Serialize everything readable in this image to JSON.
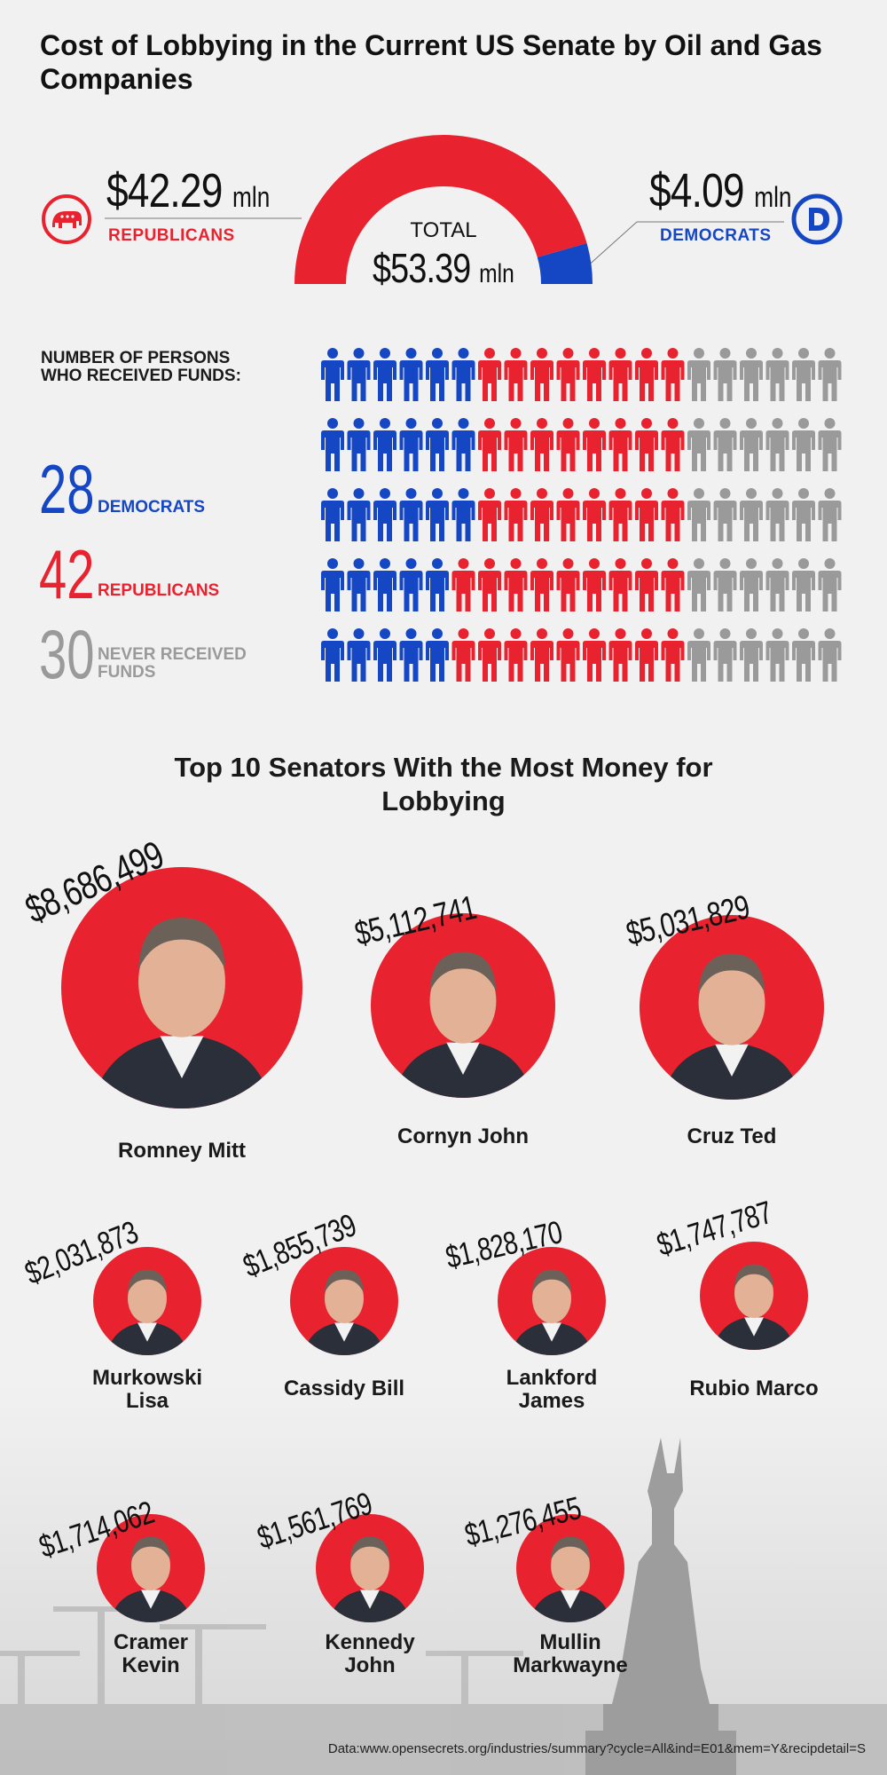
{
  "title": "Cost of Lobbying in the Current US Senate by Oil and Gas Companies",
  "total": {
    "label": "TOTAL",
    "amount": "$53.39",
    "unit": "mln"
  },
  "republicans": {
    "amount": "$42.29",
    "unit": "mln",
    "label": "REPUBLICANS",
    "value": 42.29,
    "color": "#e8232f"
  },
  "democrats": {
    "amount": "$4.09",
    "unit": "mln",
    "label": "DEMOCRATS",
    "value": 4.09,
    "color": "#1546c3"
  },
  "persons": {
    "heading": "NUMBER OF PERSONS WHO RECEIVED FUNDS:",
    "democrats": {
      "count": "28",
      "label": "DEMOCRATS"
    },
    "republicans": {
      "count": "42",
      "label": "REPUBLICANS"
    },
    "never": {
      "count": "30",
      "label": "NEVER RECEIVED FUNDS"
    }
  },
  "icons": {
    "republican_logo": "elephant-icon",
    "democrat_logo": "democrat-d-icon",
    "person": "person-icon",
    "gray": "#9a9a9a"
  },
  "top_title": "Top 10 Senators With the Most Money for Lobbying",
  "footer": "Data:www.opensecrets.org/industries/summary?cycle=All&ind=E01&mem=Y&recipdetail=S",
  "chart_data": [
    {
      "type": "pie",
      "categories": [
        "REPUBLICANS",
        "DEMOCRATS"
      ],
      "values": [
        42.29,
        4.09
      ],
      "total": 53.39
    },
    {
      "type": "bar",
      "categories": [
        "DEMOCRATS",
        "REPUBLICANS",
        "NEVER RECEIVED FUNDS"
      ],
      "values": [
        28,
        42,
        30
      ]
    },
    {
      "type": "table",
      "senators": [
        {
          "name": "Romney Mitt",
          "amount": "$8,686,499",
          "value": 8686499
        },
        {
          "name": "Cornyn John",
          "amount": "$5,112,741",
          "value": 5112741
        },
        {
          "name": "Cruz Ted",
          "amount": "$5,031,829",
          "value": 5031829
        },
        {
          "name": "Murkowski Lisa",
          "amount": "$2,031,873",
          "value": 2031873
        },
        {
          "name": "Cassidy Bill",
          "amount": "$1,855,739",
          "value": 1855739
        },
        {
          "name": "Lankford James",
          "amount": "$1,828,170",
          "value": 1828170
        },
        {
          "name": "Rubio Marco",
          "amount": "$1,747,787",
          "value": 1747787
        },
        {
          "name": "Cramer Kevin",
          "amount": "$1,714,062",
          "value": 1714062
        },
        {
          "name": "Kennedy John",
          "amount": "$1,561,769",
          "value": 1561769
        },
        {
          "name": "Mullin Markwayne",
          "amount": "$1,276,455",
          "value": 1276455
        }
      ]
    }
  ]
}
